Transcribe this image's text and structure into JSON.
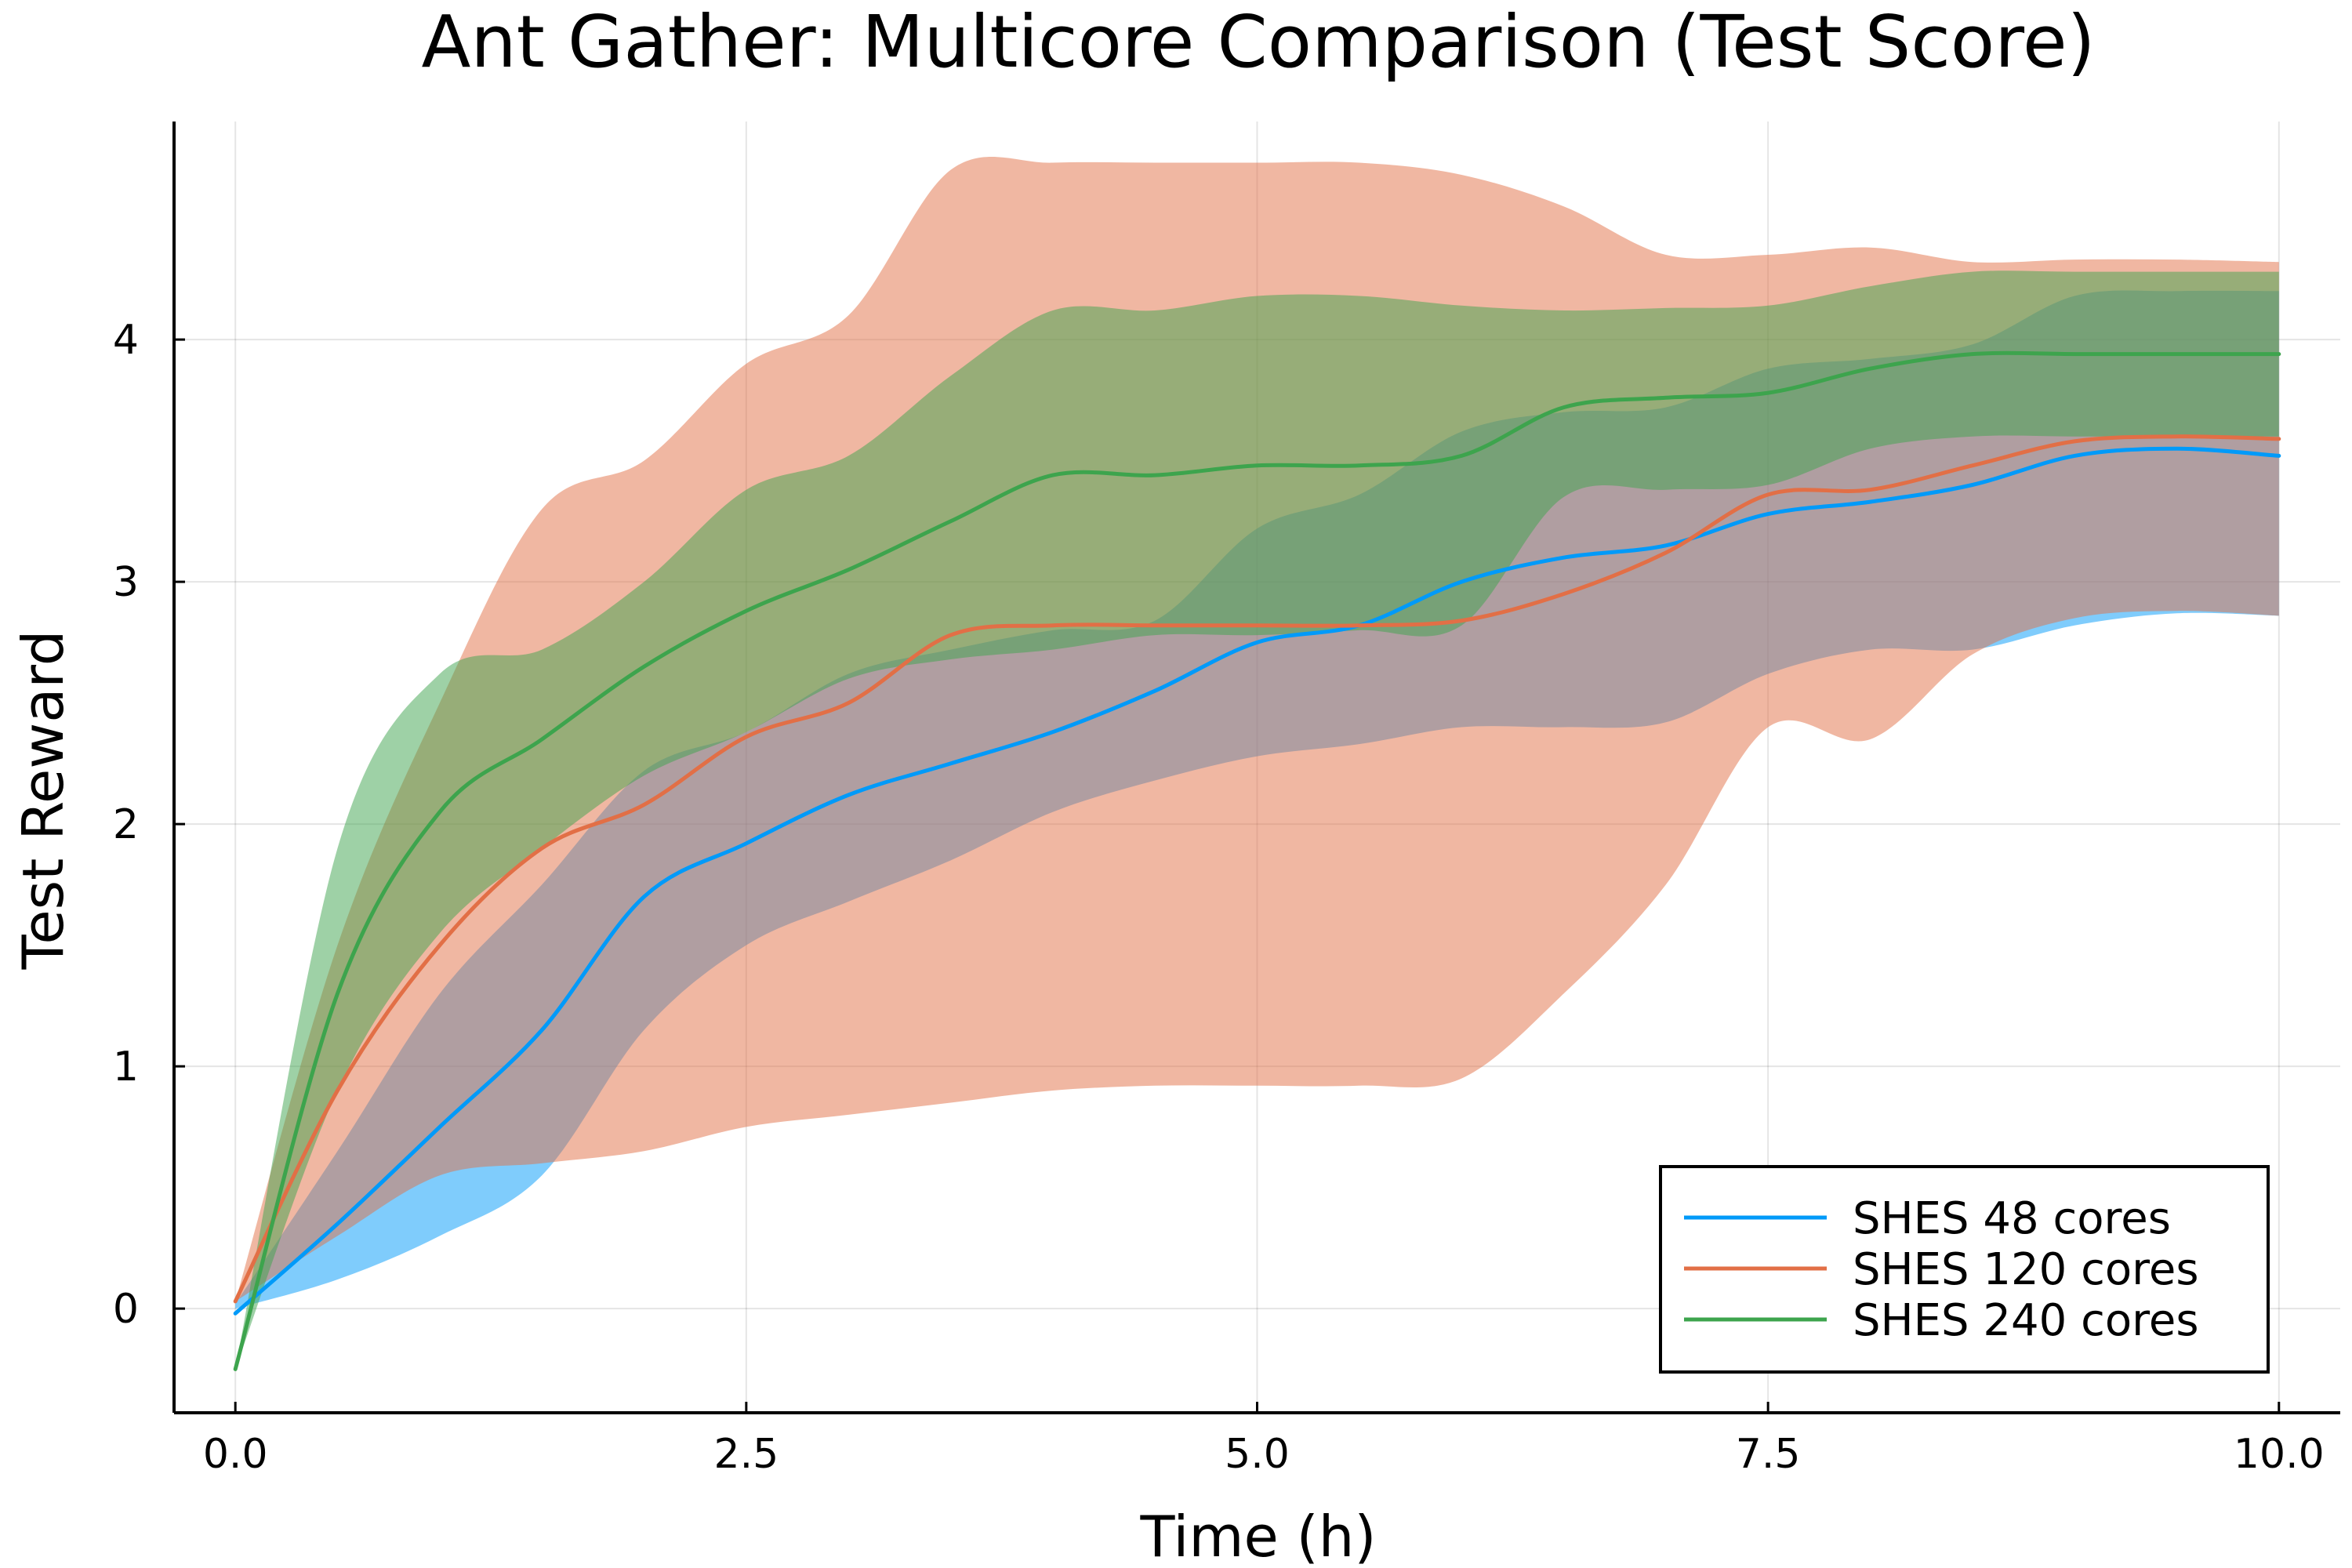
{
  "chart_data": {
    "type": "line",
    "title": "Ant Gather: Multicore Comparison (Test Score)",
    "xlabel": "Time (h)",
    "ylabel": "Test Reward",
    "xlim": [
      -0.3,
      10.3
    ],
    "ylim": [
      -0.43,
      4.9
    ],
    "x_ticks": [
      0.0,
      2.5,
      5.0,
      7.5,
      10.0
    ],
    "x_tick_labels": [
      "0.0",
      "2.5",
      "5.0",
      "7.5",
      "10.0"
    ],
    "y_ticks": [
      0,
      1,
      2,
      3,
      4
    ],
    "y_tick_labels": [
      "0",
      "1",
      "2",
      "3",
      "4"
    ],
    "grid": true,
    "legend_position": "bottom-right",
    "x": [
      0.0,
      0.5,
      1.0,
      1.5,
      2.0,
      2.5,
      3.0,
      3.5,
      4.0,
      4.5,
      5.0,
      5.5,
      6.0,
      6.5,
      7.0,
      7.5,
      8.0,
      8.5,
      9.0,
      9.5,
      10.0
    ],
    "series": [
      {
        "name": "SHES 48 cores",
        "color": "#009af9",
        "band_color": "#009af9",
        "values": [
          -0.02,
          0.35,
          0.75,
          1.15,
          1.7,
          1.92,
          2.12,
          2.25,
          2.38,
          2.55,
          2.75,
          2.82,
          3.0,
          3.1,
          3.15,
          3.28,
          3.33,
          3.4,
          3.52,
          3.55,
          3.52
        ],
        "lower": [
          0.0,
          0.12,
          0.3,
          0.55,
          1.15,
          1.5,
          1.68,
          1.85,
          2.05,
          2.18,
          2.28,
          2.33,
          2.4,
          2.4,
          2.42,
          2.62,
          2.72,
          2.72,
          2.82,
          2.87,
          2.86
        ],
        "upper": [
          0.02,
          0.65,
          1.3,
          1.75,
          2.22,
          2.38,
          2.62,
          2.72,
          2.8,
          2.84,
          3.22,
          3.36,
          3.62,
          3.7,
          3.72,
          3.88,
          3.92,
          3.98,
          4.18,
          4.2,
          4.2
        ]
      },
      {
        "name": "SHES 120 cores",
        "color": "#e26f46",
        "band_color": "#e26f46",
        "values": [
          0.03,
          0.9,
          1.5,
          1.9,
          2.08,
          2.36,
          2.5,
          2.78,
          2.82,
          2.82,
          2.82,
          2.82,
          2.84,
          2.95,
          3.12,
          3.36,
          3.38,
          3.48,
          3.58,
          3.6,
          3.59
        ],
        "lower": [
          0.03,
          0.3,
          0.55,
          0.6,
          0.65,
          0.75,
          0.8,
          0.85,
          0.9,
          0.92,
          0.92,
          0.92,
          0.95,
          1.3,
          1.75,
          2.4,
          2.35,
          2.7,
          2.85,
          2.88,
          2.86
        ],
        "upper": [
          0.03,
          1.5,
          2.5,
          3.3,
          3.5,
          3.9,
          4.1,
          4.7,
          4.73,
          4.73,
          4.73,
          4.73,
          4.68,
          4.55,
          4.35,
          4.35,
          4.38,
          4.32,
          4.33,
          4.33,
          4.32
        ]
      },
      {
        "name": "SHES 240 cores",
        "color": "#3da44d",
        "band_color": "#3da44d",
        "values": [
          -0.25,
          1.3,
          2.05,
          2.35,
          2.65,
          2.88,
          3.05,
          3.25,
          3.44,
          3.44,
          3.48,
          3.48,
          3.52,
          3.72,
          3.76,
          3.78,
          3.88,
          3.94,
          3.94,
          3.94,
          3.94
        ],
        "lower": [
          -0.25,
          0.9,
          1.55,
          1.9,
          2.2,
          2.38,
          2.6,
          2.68,
          2.72,
          2.78,
          2.78,
          2.8,
          2.82,
          3.35,
          3.38,
          3.4,
          3.55,
          3.6,
          3.6,
          3.6,
          3.6
        ],
        "upper": [
          -0.25,
          1.9,
          2.62,
          2.72,
          3.0,
          3.38,
          3.52,
          3.85,
          4.12,
          4.12,
          4.18,
          4.18,
          4.14,
          4.12,
          4.13,
          4.14,
          4.22,
          4.28,
          4.28,
          4.28,
          4.28
        ]
      }
    ]
  }
}
